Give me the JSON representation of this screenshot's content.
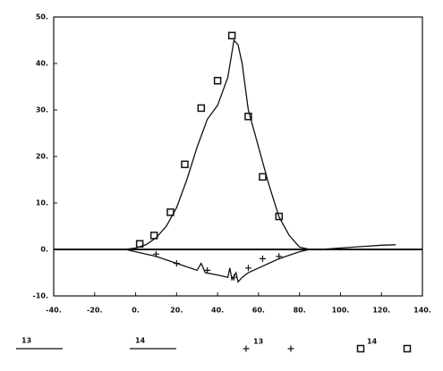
{
  "chart_data": {
    "type": "line",
    "xlim": [
      -40,
      140
    ],
    "ylim": [
      -10,
      50
    ],
    "xticks": [
      {
        "value": -40,
        "label": "-40."
      },
      {
        "value": -20,
        "label": "-20."
      },
      {
        "value": 0,
        "label": "0."
      },
      {
        "value": 20,
        "label": "20."
      },
      {
        "value": 40,
        "label": "40."
      },
      {
        "value": 60,
        "label": "60."
      },
      {
        "value": 80,
        "label": "80."
      },
      {
        "value": 100,
        "label": "100."
      },
      {
        "value": 120,
        "label": "120."
      },
      {
        "value": 140,
        "label": "140."
      }
    ],
    "yticks": [
      {
        "value": -10,
        "label": "-10."
      },
      {
        "value": 0,
        "label": "0."
      },
      {
        "value": 10,
        "label": "10."
      },
      {
        "value": 20,
        "label": "20."
      },
      {
        "value": 30,
        "label": "30."
      },
      {
        "value": 40,
        "label": "40."
      },
      {
        "value": 50,
        "label": "50."
      }
    ],
    "series": [
      {
        "name": "13",
        "style": "line",
        "color": "#111",
        "x": [
          -5,
          0,
          5,
          10,
          15,
          20,
          25,
          30,
          35,
          40,
          45,
          48,
          50,
          52,
          55,
          60,
          65,
          70,
          75,
          80,
          85,
          90,
          100,
          110,
          120,
          127
        ],
        "values": [
          0,
          0.3,
          1,
          2.5,
          5,
          9,
          15,
          22,
          28,
          31,
          37,
          45,
          44,
          40,
          30,
          22,
          14,
          7,
          3,
          0.5,
          0,
          0,
          0.3,
          0.6,
          0.9,
          1
        ]
      },
      {
        "name": "14",
        "style": "line",
        "color": "#111",
        "x": [
          -5,
          0,
          10,
          20,
          30,
          32,
          34,
          40,
          45,
          46,
          47,
          49,
          50,
          52,
          55,
          60,
          70,
          80,
          85
        ],
        "values": [
          0,
          -0.5,
          -1.5,
          -3,
          -4.5,
          -3,
          -5,
          -5.5,
          -6,
          -4,
          -6.5,
          -5,
          -7,
          -6,
          -5,
          -4,
          -2,
          -0.5,
          0
        ]
      },
      {
        "name": "13",
        "style": "plus",
        "color": "#111",
        "x": [
          10,
          20,
          35,
          48,
          55,
          62,
          70
        ],
        "values": [
          -1,
          -3,
          -4.5,
          -6,
          -4,
          -2,
          -1.5
        ]
      },
      {
        "name": "14",
        "style": "square",
        "color": "#111",
        "x": [
          2,
          9,
          17,
          24,
          32,
          40,
          47,
          55,
          62,
          70
        ],
        "values": [
          1.2,
          3,
          8,
          18.3,
          30.4,
          36.3,
          46,
          28.6,
          15.6,
          7.1
        ]
      }
    ]
  }
}
